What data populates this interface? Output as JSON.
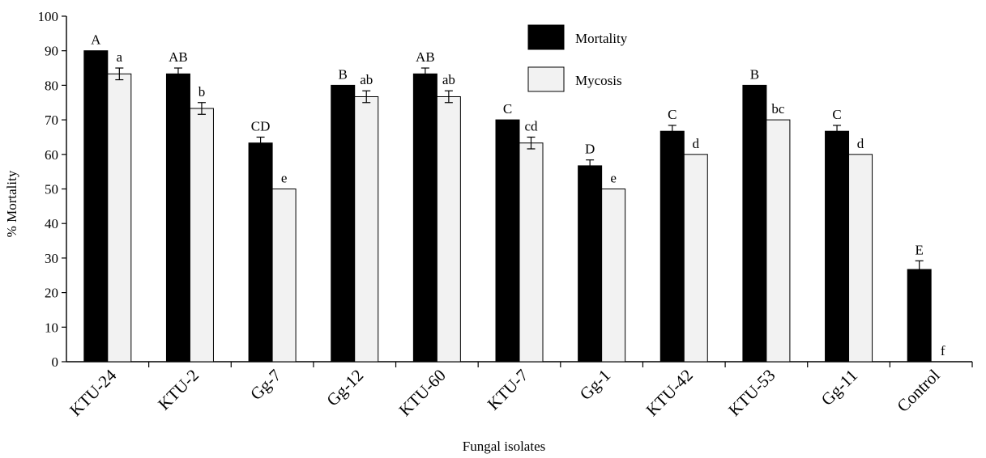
{
  "chart_data": {
    "type": "bar",
    "title": "",
    "xlabel": "Fungal isolates",
    "ylabel": "% Mortality",
    "ylim": [
      0,
      100
    ],
    "yticks": [
      0,
      10,
      20,
      30,
      40,
      50,
      60,
      70,
      80,
      90,
      100
    ],
    "legend_position": "top-center",
    "categories": [
      "KTU-24",
      "KTU-2",
      "Gg-7",
      "Gg-12",
      "KTU-60",
      "KTU-7",
      "Gg-1",
      "KTU-42",
      "KTU-53",
      "Gg-11",
      "Control"
    ],
    "series": [
      {
        "name": "Mortality",
        "color": "#000000",
        "values": [
          90,
          83.3,
          63.3,
          80,
          83.3,
          70,
          56.7,
          66.7,
          80,
          66.7,
          26.7
        ],
        "errors": [
          0,
          1.7,
          1.7,
          0,
          1.7,
          0,
          1.7,
          1.7,
          0,
          1.7,
          2.5
        ],
        "labels": [
          "A",
          "AB",
          "CD",
          "B",
          "AB",
          "C",
          "D",
          "C",
          "B",
          "C",
          "E"
        ]
      },
      {
        "name": "Mycosis",
        "color": "#f2f2f2",
        "values": [
          83.3,
          73.3,
          50,
          76.7,
          76.7,
          63.3,
          50,
          60,
          70,
          60,
          0
        ],
        "errors": [
          1.7,
          1.7,
          0,
          1.7,
          1.7,
          1.7,
          0,
          0,
          0,
          0,
          0
        ],
        "labels": [
          "a",
          "b",
          "e",
          "ab",
          "ab",
          "cd",
          "e",
          "d",
          "bc",
          "d",
          "f"
        ]
      }
    ]
  }
}
